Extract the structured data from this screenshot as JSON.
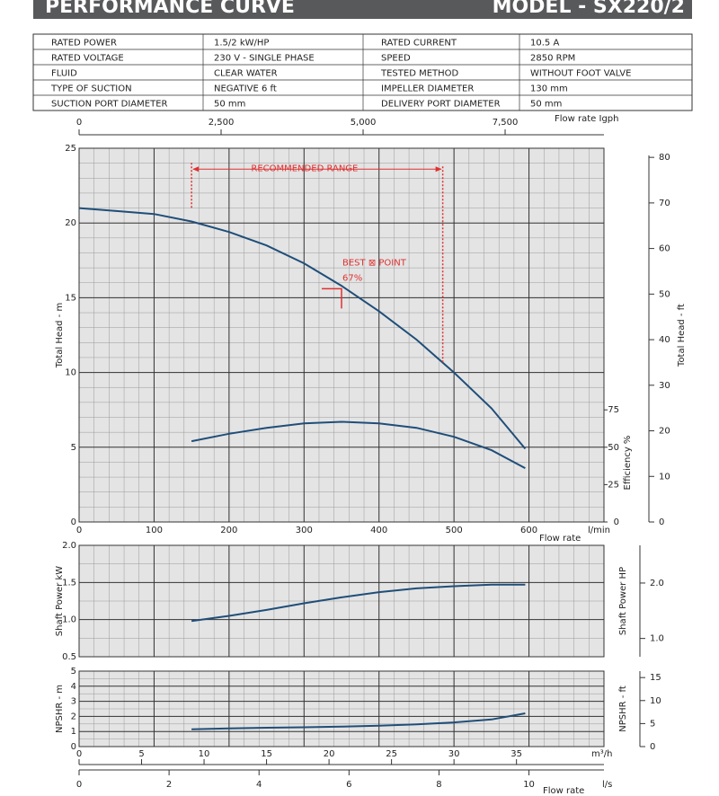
{
  "header": {
    "title": "PERFORMANCE  CURVE",
    "model": "MODEL - SX220/2"
  },
  "specs": {
    "rows": [
      [
        "RATED POWER",
        "1.5/2  kW/HP",
        "RATED CURRENT",
        "10.5  A"
      ],
      [
        "RATED VOLTAGE",
        "230 V - SINGLE PHASE",
        "SPEED",
        "2850 RPM"
      ],
      [
        "FLUID",
        "CLEAR WATER",
        "TESTED  METHOD",
        "WITHOUT FOOT VALVE"
      ],
      [
        "TYPE OF SUCTION",
        "NEGATIVE  6 ft",
        "IMPELLER DIAMETER",
        "130 mm"
      ],
      [
        "SUCTION PORT DIAMETER",
        "50 mm",
        "DELIVERY PORT DIAMETER",
        "50 mm"
      ]
    ]
  },
  "chart_data": [
    {
      "type": "line",
      "x": [
        0,
        50,
        100,
        150,
        200,
        250,
        300,
        350,
        400,
        450,
        500,
        550,
        595
      ],
      "xlim": [
        0,
        700
      ],
      "xticks": [
        0,
        100,
        200,
        300,
        400,
        500,
        600
      ],
      "x_unit": "l/min",
      "x_title": "Flow rate",
      "x2lim": [
        0,
        9240
      ],
      "x2ticks": [
        0,
        {
          "value": 2500,
          "label": "2,500"
        },
        {
          "value": 5000,
          "label": "5,000"
        },
        {
          "value": 7500,
          "label": "7,500"
        }
      ],
      "x2_title": "Flow rate  Igph",
      "ylim": [
        0,
        25
      ],
      "yticks": [
        0,
        5,
        10,
        15,
        20,
        25
      ],
      "ylabel": "Total Head - m",
      "y2lim": [
        0,
        82
      ],
      "y2ticks": [
        0,
        10,
        20,
        30,
        40,
        50,
        60,
        70,
        80
      ],
      "y2label": "Total Head - ft",
      "y3lim": [
        0,
        250
      ],
      "y3ticks": [
        0,
        25,
        50,
        75
      ],
      "y3label": "Efficiency %",
      "grid": true,
      "minor_grid": {
        "x": 20,
        "y": 1
      },
      "series": [
        {
          "color": "#1f4e79",
          "values": [
            21.0,
            20.8,
            20.6,
            20.1,
            19.4,
            18.5,
            17.3,
            15.8,
            14.1,
            12.2,
            10.0,
            7.6,
            4.9
          ]
        },
        {
          "color": "#1f4e79",
          "axis": "y3",
          "values": [
            null,
            null,
            null,
            54,
            59,
            63,
            66,
            67,
            66,
            63,
            57,
            48,
            36
          ]
        }
      ],
      "annotations": [
        {
          "text": "RECOMMENDED RANGE",
          "x": [
            150,
            485
          ],
          "y": 23.6,
          "color": "#e03030"
        },
        {
          "text": "BEST ⊠ POINT",
          "label": "67%",
          "x": 350,
          "y": 15.6,
          "color": "#e03030"
        }
      ]
    },
    {
      "type": "line",
      "x": [
        150,
        200,
        250,
        300,
        350,
        400,
        450,
        500,
        550,
        595
      ],
      "xlim": [
        0,
        700
      ],
      "xticks": [
        0,
        100,
        200,
        300,
        400,
        500,
        600
      ],
      "ylim": [
        0.5,
        2.0
      ],
      "yticks": [
        {
          "value": 0.5,
          "label": "0.5"
        },
        {
          "value": 1.0,
          "label": "1.0"
        },
        {
          "value": 1.5,
          "label": "1.5"
        },
        {
          "value": 2.0,
          "label": "2.0"
        }
      ],
      "ylabel": "Shaft Power  kW",
      "y2lim": [
        0.67,
        2.68
      ],
      "y2ticks": [
        {
          "value": 1,
          "label": "1.0"
        },
        {
          "value": 2,
          "label": "2.0"
        }
      ],
      "y2label": "Shaft Power  HP",
      "grid": true,
      "minor_grid": {
        "x": 20,
        "y": 0.25
      },
      "series": [
        {
          "color": "#1f4e79",
          "values": [
            0.98,
            1.05,
            1.13,
            1.22,
            1.3,
            1.37,
            1.42,
            1.45,
            1.47,
            1.47
          ]
        }
      ]
    },
    {
      "type": "line",
      "x": [
        150,
        200,
        250,
        300,
        350,
        400,
        450,
        500,
        550,
        595
      ],
      "xlim": [
        0,
        700
      ],
      "xticks": [
        0,
        100,
        200,
        300,
        400,
        500,
        600
      ],
      "ylim": [
        0,
        5
      ],
      "yticks": [
        0,
        1,
        2,
        3,
        4,
        5
      ],
      "ylabel": "NPSHR - m",
      "y2lim": [
        0,
        16.4
      ],
      "y2ticks": [
        0,
        5,
        10,
        15
      ],
      "y2label": "NPSHR - ft",
      "x2lim": [
        0,
        42
      ],
      "x2ticks": [
        0,
        5,
        10,
        15,
        20,
        25,
        30,
        35
      ],
      "x2_unit": "m³/h",
      "x3lim": [
        0,
        11.667
      ],
      "x3ticks": [
        0,
        2,
        4,
        6,
        8,
        10
      ],
      "x3_unit": "l/s",
      "x3_title": "Flow rate",
      "grid": true,
      "minor_grid": {
        "x": 20,
        "y": 0.5
      },
      "series": [
        {
          "color": "#1f4e79",
          "values": [
            1.15,
            1.2,
            1.25,
            1.28,
            1.32,
            1.38,
            1.47,
            1.6,
            1.8,
            2.2
          ]
        }
      ]
    }
  ]
}
